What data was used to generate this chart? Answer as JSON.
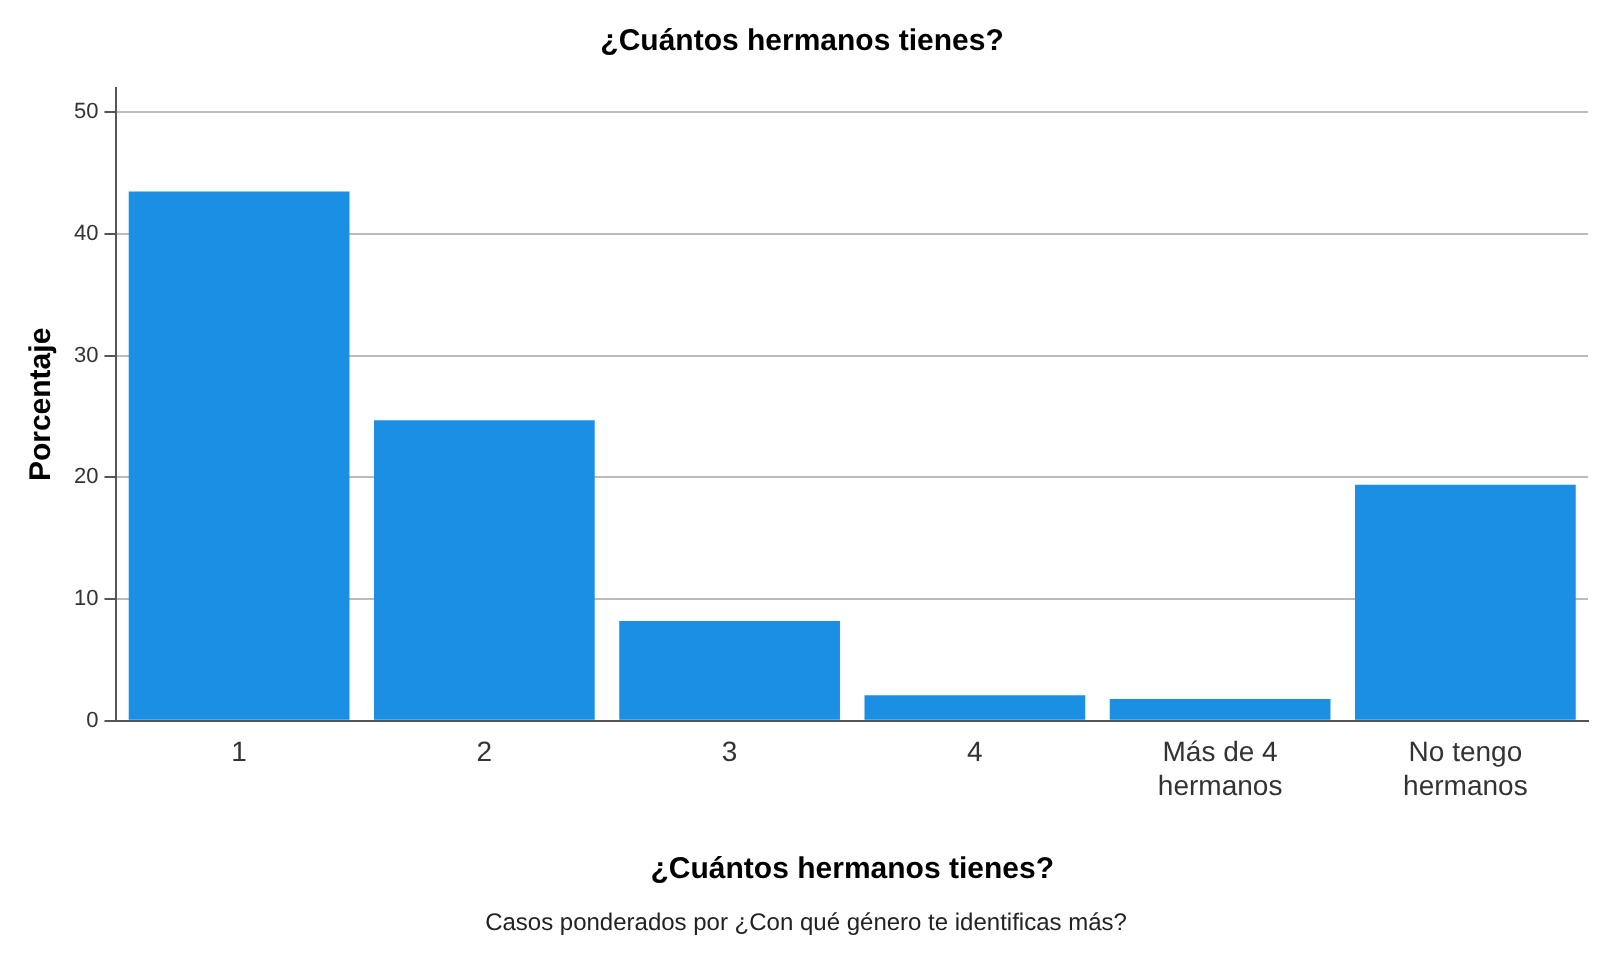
{
  "chart_data": {
    "type": "bar",
    "title": "¿Cuántos hermanos tienes?",
    "xlabel": "¿Cuántos hermanos tienes?",
    "ylabel": "Porcentaje",
    "categories": [
      "1",
      "2",
      "3",
      "4",
      "Más de 4 hermanos",
      "No tengo hermanos"
    ],
    "values": [
      43.5,
      24.7,
      8.2,
      2.1,
      1.8,
      19.4
    ],
    "color": "#1a8fe3",
    "ylim": [
      0,
      52
    ],
    "yticks": [
      0,
      10,
      20,
      30,
      40,
      50
    ],
    "grid": "y",
    "legend": false,
    "annotations": [
      "Casos ponderados por ¿Con qué género te identificas más?"
    ]
  }
}
